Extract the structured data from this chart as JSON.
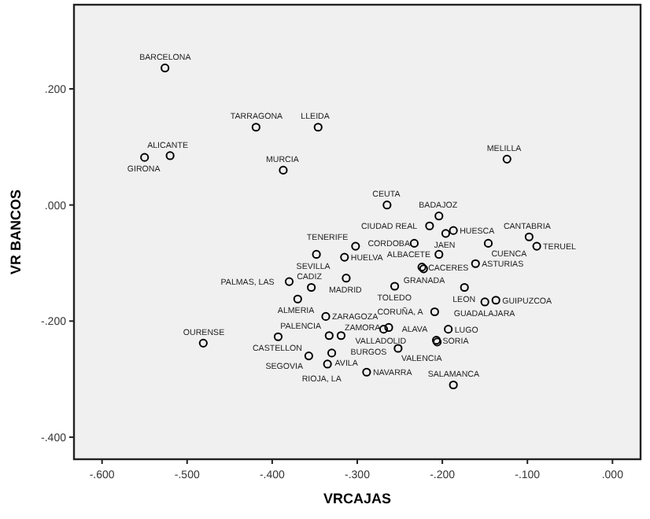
{
  "chart_data": {
    "type": "scatter",
    "xlabel": "VRCAJAS",
    "ylabel": "VR BANCOS",
    "marker": "circle",
    "grid": false,
    "xlim": [
      -0.633,
      0.033
    ],
    "ylim": [
      -0.438,
      0.345
    ],
    "xticks": [
      {
        "value": -0.6,
        "label": "-.600"
      },
      {
        "value": -0.5,
        "label": "-.500"
      },
      {
        "value": -0.4,
        "label": "-.400"
      },
      {
        "value": -0.3,
        "label": "-.300"
      },
      {
        "value": -0.2,
        "label": "-.200"
      },
      {
        "value": -0.1,
        "label": "-.100"
      },
      {
        "value": 0,
        "label": ".000"
      }
    ],
    "yticks": [
      {
        "value": -0.4,
        "label": "-.400"
      },
      {
        "value": -0.2,
        "label": "-.200"
      },
      {
        "value": 0,
        "label": ".000"
      },
      {
        "value": 0.2,
        "label": ".200"
      }
    ],
    "series": [
      {
        "color": "#000000",
        "x": [
          -0.526,
          -0.419,
          -0.346,
          -0.52,
          -0.55,
          -0.387,
          -0.124,
          -0.265,
          -0.204,
          -0.215,
          -0.187,
          -0.196,
          -0.233,
          -0.302,
          -0.146,
          -0.098,
          -0.089,
          -0.315,
          -0.348,
          -0.354,
          -0.204,
          -0.224,
          -0.222,
          -0.161,
          -0.313,
          -0.256,
          -0.174,
          -0.15,
          -0.137,
          -0.38,
          -0.37,
          -0.337,
          -0.209,
          -0.193,
          -0.269,
          -0.333,
          -0.393,
          -0.481,
          -0.319,
          -0.33,
          -0.252,
          -0.207,
          -0.206,
          -0.357,
          -0.335,
          -0.263,
          -0.289,
          -0.187
        ],
        "values": [
          0.236,
          0.134,
          0.134,
          0.085,
          0.082,
          0.06,
          0.079,
          0,
          -0.019,
          -0.036,
          -0.044,
          -0.049,
          -0.066,
          -0.071,
          -0.066,
          -0.055,
          -0.071,
          -0.09,
          -0.085,
          -0.142,
          -0.085,
          -0.107,
          -0.11,
          -0.101,
          -0.126,
          -0.14,
          -0.142,
          -0.167,
          -0.164,
          -0.132,
          -0.162,
          -0.192,
          -0.184,
          -0.214,
          -0.214,
          -0.225,
          -0.227,
          -0.238,
          -0.225,
          -0.255,
          -0.247,
          -0.233,
          -0.236,
          -0.26,
          -0.274,
          -0.211,
          -0.288,
          -0.31
        ],
        "value_labels": [
          "BARCELONA",
          "TARRAGONA",
          "LLEIDA",
          "ALICANTE",
          "GIRONA",
          "MURCIA",
          "MELILLA",
          "CEUTA",
          "BADAJOZ",
          "CIUDAD REAL",
          "HUESCA",
          "JAEN",
          "CORDOBA",
          "TENERIFE",
          "CUENCA",
          "CANTABRIA",
          "TERUEL",
          "HUELVA",
          "SEVILLA",
          "CADIZ",
          "ALBACETE",
          "CACERES",
          "GRANADA",
          "ASTURIAS",
          "MADRID",
          "TOLEDO",
          "LEON",
          "GUADALAJARA",
          "GUIPUZCOA",
          "PALMAS, LAS",
          "ALMERIA",
          "ZARAGOZA",
          "CORUÑA, A",
          "LUGO",
          "VALLADOLID",
          "PALENCIA",
          "CASTELLON",
          "OURENSE",
          "BURGOS",
          "AVILA",
          "VALENCIA",
          "SORIA",
          "ALAVA",
          "SEGOVIA",
          "RIOJA, LA",
          "ZAMORA",
          "NAVARRA",
          "SALAMANCA"
        ]
      }
    ]
  }
}
